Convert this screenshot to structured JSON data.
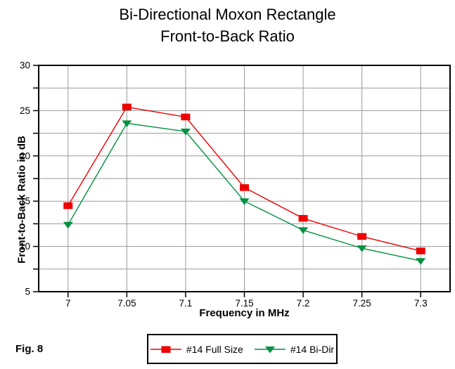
{
  "figure_label": "Fig. 8",
  "title": {
    "line1": "Bi-Directional Moxon Rectangle",
    "line2": "Front-to-Back Ratio"
  },
  "chart_data": {
    "type": "line",
    "title": "Bi-Directional Moxon Rectangle Front-to-Back Ratio",
    "xlabel": "Frequency in MHz",
    "ylabel": "Front-to-Back Ratio in dB",
    "x": [
      7,
      7.05,
      7.1,
      7.15,
      7.2,
      7.25,
      7.3
    ],
    "x_tick_labels": [
      "7",
      "7.05",
      "7.1",
      "7.15",
      "7.2",
      "7.25",
      "7.3"
    ],
    "xlim": [
      6.975,
      7.325
    ],
    "ylim": [
      5,
      30
    ],
    "y_major_ticks": [
      5,
      10,
      15,
      20,
      25,
      30
    ],
    "y_grid_step": 2.5,
    "grid": true,
    "legend_position": "bottom-center",
    "series": [
      {
        "name": "#14 Full Size",
        "color": "#ee0000",
        "marker": "square",
        "values": [
          14.5,
          25.4,
          24.3,
          16.5,
          13.1,
          11.1,
          9.5
        ]
      },
      {
        "name": "#14 Bi-Dir",
        "color": "#009140",
        "marker": "triangle-down",
        "values": [
          12.4,
          23.6,
          22.7,
          15.0,
          11.8,
          9.8,
          8.4
        ]
      }
    ]
  },
  "colors": {
    "grid": "#9a9a9a",
    "axis": "#000000",
    "text": "#000000",
    "background": "#ffffff"
  }
}
